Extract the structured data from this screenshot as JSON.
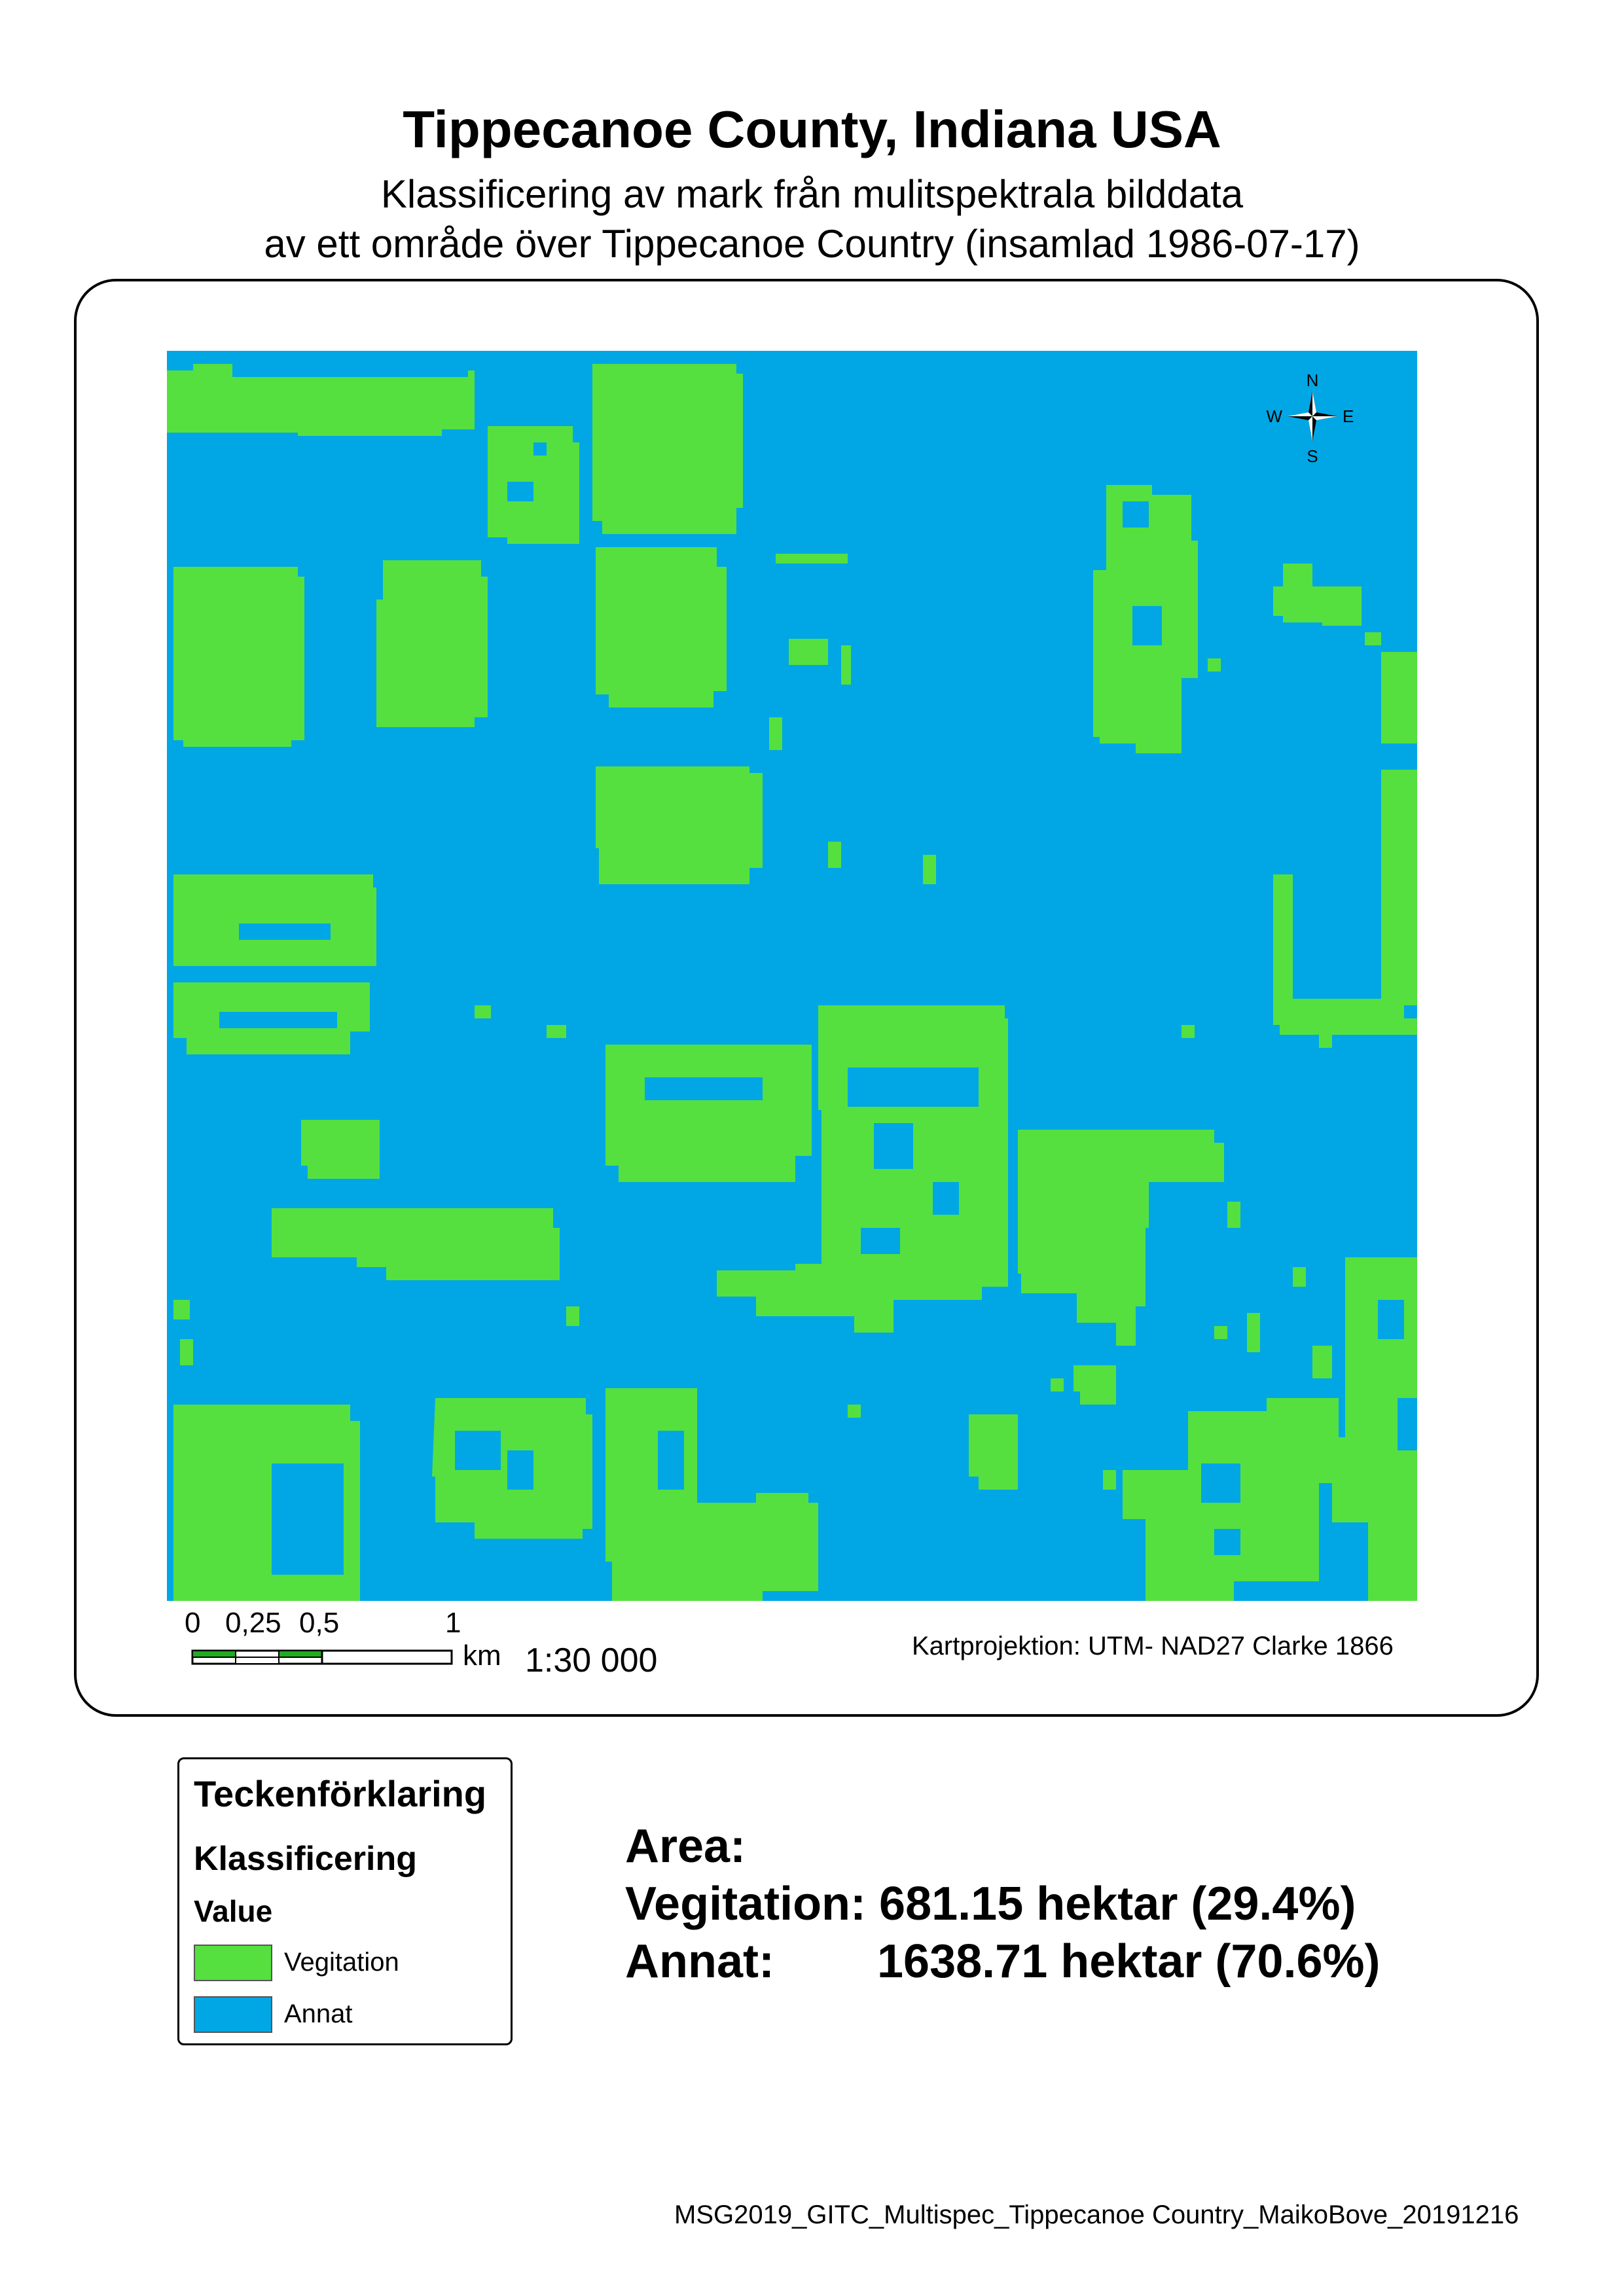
{
  "title": "Tippecanoe County, Indiana USA",
  "subtitle_line1": "Klassificering av mark från mulitspektrala bilddata",
  "subtitle_line2": "av ett område över Tippecanoe Country  (insamlad 1986-07-17)",
  "north_arrow": {
    "n": "N",
    "e": "E",
    "s": "S",
    "w": "W",
    "icon": "compass-rose-icon"
  },
  "scale": {
    "ticks": [
      "0",
      "0,25",
      "0,5",
      "1"
    ],
    "unit": "km",
    "ratio": "1:30 000"
  },
  "projection": "Kartprojektion: UTM- NAD27 Clarke 1866",
  "colors": {
    "vegetation": "#55e03f",
    "other": "#00a7e4",
    "scalebar_fill": "#22aa22"
  },
  "legend": {
    "title": "Teckenförklaring",
    "subtitle": "Klassificering",
    "value_header": "Value",
    "items": [
      {
        "label": "Vegitation",
        "color": "#55e03f"
      },
      {
        "label": "Annat",
        "color": "#00a7e4"
      }
    ]
  },
  "area": {
    "heading": "Area:",
    "vegetation": "Vegitation:  681.15 hektar (29.4%)",
    "other_label": "Annat:",
    "other_value": "1638.71 hektar (70.6%)"
  },
  "footer": "MSG2019_GITC_Multispec_Tippecanoe Country_MaikoBove_20191216"
}
